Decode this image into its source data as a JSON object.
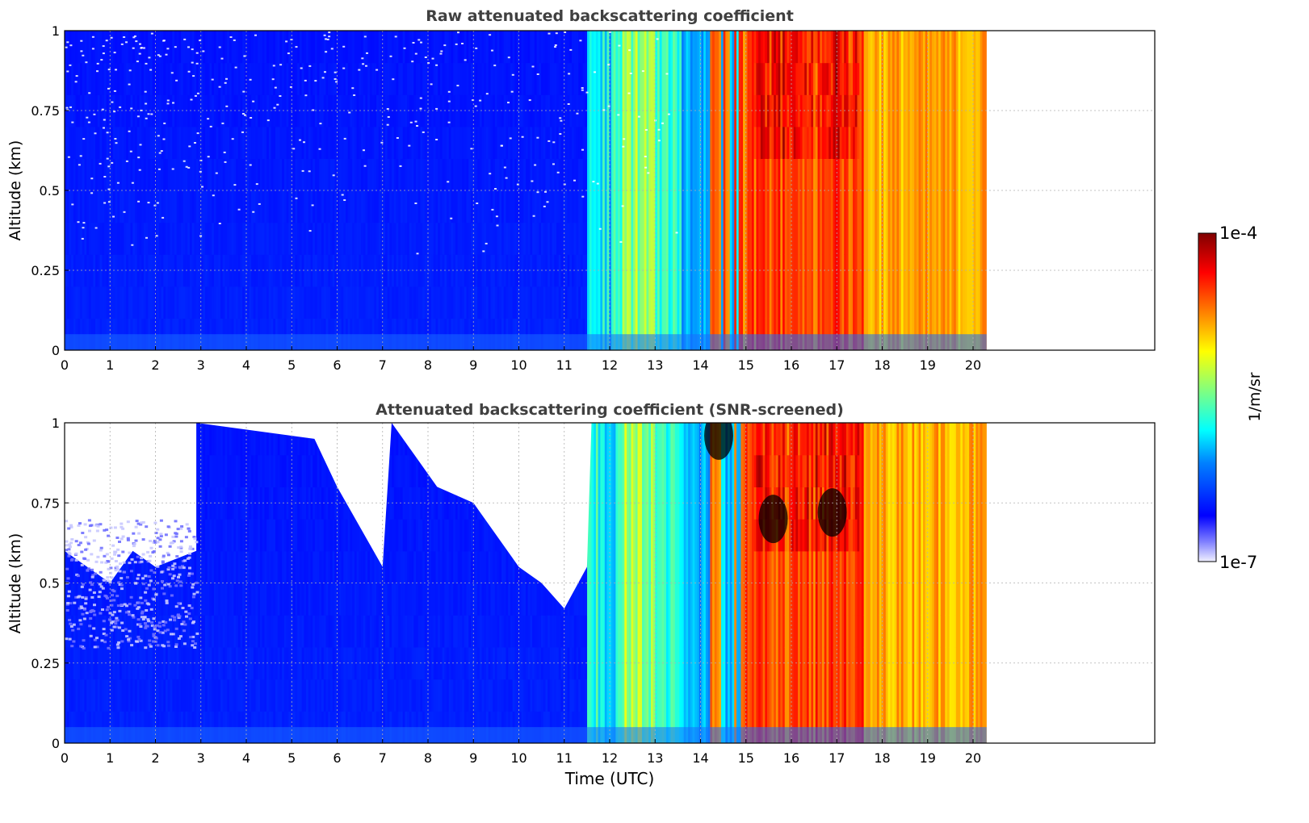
{
  "chart_data": [
    {
      "type": "heatmap",
      "title": "Raw attenuated backscattering coefficient",
      "ylabel": "Altitude (km)",
      "xlabel": "",
      "x_ticks": [
        "0",
        "1",
        "2",
        "3",
        "4",
        "5",
        "6",
        "7",
        "8",
        "9",
        "10",
        "11",
        "12",
        "13",
        "14",
        "15",
        "16",
        "17",
        "18",
        "19",
        "20"
      ],
      "y_ticks": [
        "0",
        "0.25",
        "0.5",
        "0.75",
        "1"
      ],
      "xlim": [
        0,
        24
      ],
      "ylim": [
        0,
        1
      ],
      "data_end_hour": 20.3,
      "grid": true,
      "regions": [
        {
          "x": [
            0,
            3
          ],
          "description": "noisy sparse blue/white aloft"
        },
        {
          "x": [
            3,
            11.5
          ],
          "description": "blue, increasing density near surface"
        },
        {
          "x": [
            11.5,
            14.2
          ],
          "description": "cyan to yellow bands"
        },
        {
          "x": [
            14.2,
            20.3
          ],
          "description": "orange to dark red, strongest aloft near 15.5 and 17"
        }
      ]
    },
    {
      "type": "heatmap",
      "title": "Attenuated backscattering coefficient (SNR-screened)",
      "ylabel": "Altitude (km)",
      "xlabel": "Time (UTC)",
      "x_ticks": [
        "0",
        "1",
        "2",
        "3",
        "4",
        "5",
        "6",
        "7",
        "8",
        "9",
        "10",
        "11",
        "12",
        "13",
        "14",
        "15",
        "16",
        "17",
        "18",
        "19",
        "20"
      ],
      "y_ticks": [
        "0",
        "0.25",
        "0.5",
        "0.75",
        "1"
      ],
      "xlim": [
        0,
        24
      ],
      "ylim": [
        0,
        1
      ],
      "data_end_hour": 20.3,
      "grid": true,
      "screened_top_km": [
        [
          0,
          0.6
        ],
        [
          0.5,
          0.55
        ],
        [
          1,
          0.5
        ],
        [
          1.5,
          0.6
        ],
        [
          2,
          0.55
        ],
        [
          2.9,
          0.6
        ],
        [
          2.9,
          1.0
        ],
        [
          5.5,
          0.95
        ],
        [
          6,
          0.8
        ],
        [
          7,
          0.55
        ],
        [
          7.2,
          1.0
        ],
        [
          8.2,
          0.8
        ],
        [
          9,
          0.75
        ],
        [
          10,
          0.55
        ],
        [
          10.5,
          0.5
        ],
        [
          11,
          0.42
        ],
        [
          11.5,
          0.55
        ],
        [
          11.6,
          1.0
        ],
        [
          24,
          1.0
        ]
      ]
    }
  ],
  "colorbar": {
    "min_label": "1e-7",
    "max_label": "1e-4",
    "label": "1/m/sr",
    "colors": [
      "#f0f0ff",
      "#8080ff",
      "#0000ff",
      "#0080ff",
      "#00ffff",
      "#80ff80",
      "#ffff00",
      "#ff8000",
      "#ff0000",
      "#800000"
    ]
  }
}
